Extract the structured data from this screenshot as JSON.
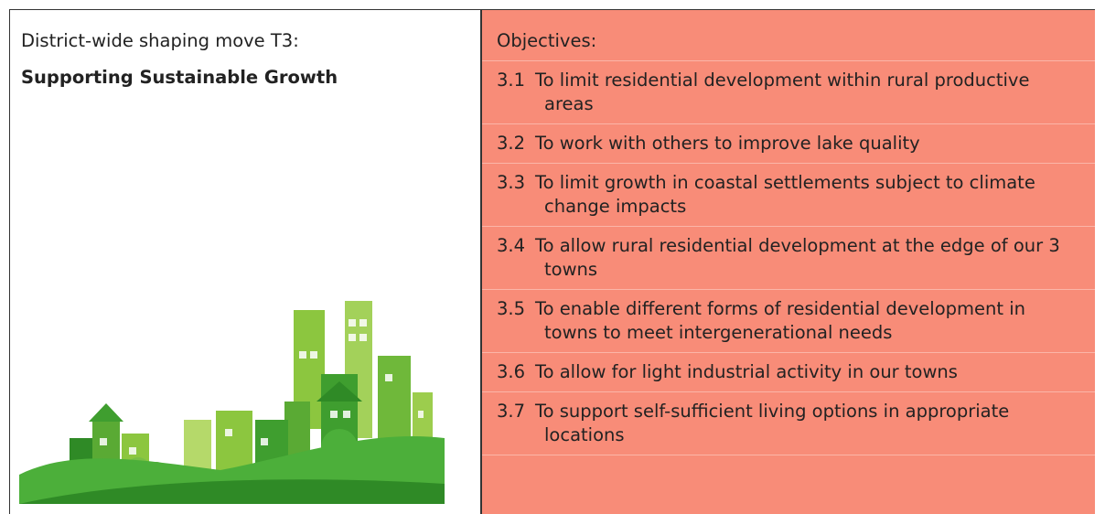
{
  "header": {
    "label": "District-wide shaping move T3:",
    "title": "Supporting Sustainable Growth"
  },
  "objectives": {
    "heading": "Objectives:",
    "items": [
      {
        "number": "3.1",
        "text": "To limit residential development within rural productive areas"
      },
      {
        "number": "3.2",
        "text": "To work with others to improve lake quality"
      },
      {
        "number": "3.3",
        "text": "To limit growth in coastal settlements subject to climate change impacts"
      },
      {
        "number": "3.4",
        "text": "To allow rural residential development at the edge of our 3 towns"
      },
      {
        "number": "3.5",
        "text": "To enable different forms of residential development in towns to meet intergenerational needs"
      },
      {
        "number": "3.6",
        "text": "To allow for light industrial activity in our towns"
      },
      {
        "number": "3.7",
        "text": "To support self-sufficient living options in appropriate locations"
      }
    ]
  }
}
